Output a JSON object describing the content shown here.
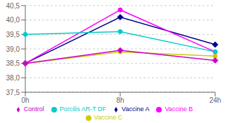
{
  "chart_data": {
    "type": "line",
    "categories": [
      "0h",
      "8h",
      "24h"
    ],
    "series": [
      {
        "name": "Vaccine A",
        "color": "#00008B",
        "marker": "diamond",
        "values": [
          38.5,
          40.1,
          39.15
        ]
      },
      {
        "name": "Vaccine B",
        "color": "#ff00ff",
        "marker": "circle",
        "values": [
          38.5,
          40.35,
          38.9
        ]
      },
      {
        "name": "Vaccine C",
        "color": "#cccc00",
        "marker": "circle",
        "values": [
          38.5,
          38.9,
          38.75
        ]
      },
      {
        "name": "Porcilis AR-T DF",
        "color": "#00cccc",
        "marker": "circle",
        "values": [
          39.5,
          39.6,
          38.9
        ]
      },
      {
        "name": "Control",
        "color": "#cc00cc",
        "marker": "diamond",
        "values": [
          38.5,
          38.95,
          38.6
        ]
      }
    ],
    "ylim": [
      37.5,
      40.5
    ],
    "yticks": [
      {
        "value": 37.5,
        "label": "37,5"
      },
      {
        "value": 38.0,
        "label": "38,0"
      },
      {
        "value": 38.5,
        "label": "38,5"
      },
      {
        "value": 39.0,
        "label": "39,0"
      },
      {
        "value": 39.5,
        "label": "39,5"
      },
      {
        "value": 40.0,
        "label": "40,0"
      },
      {
        "value": 40.5,
        "label": "40,5"
      }
    ],
    "grid": true,
    "legend": "bottom"
  }
}
